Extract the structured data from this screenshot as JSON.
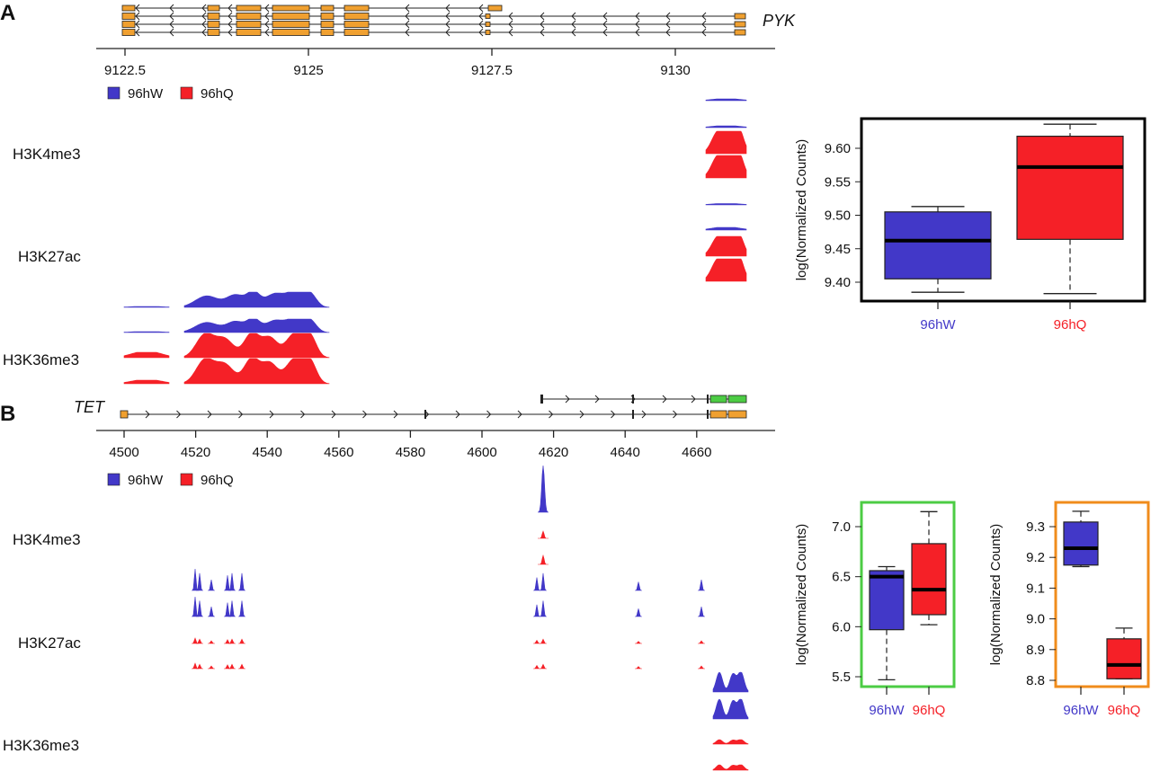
{
  "panels": {
    "a": "A",
    "b": "B"
  },
  "colors": {
    "wt": "#4238c8",
    "q": "#f52027",
    "exon": "#f0a030",
    "green_frame": "#4ccc44",
    "orange_frame": "#f08c1c"
  },
  "legend": {
    "wt": "96hW",
    "q": "96hQ"
  },
  "tracks": {
    "k4": "H3K4me3",
    "k27": "H3K27ac",
    "k36": "H3K36me3"
  },
  "panel_a": {
    "gene": "PYK",
    "axis_ticks": [
      "9122.5",
      "9125",
      "9127.5",
      "9130"
    ]
  },
  "panel_b": {
    "gene": "TET",
    "axis_ticks": [
      "4500",
      "4520",
      "4540",
      "4560",
      "4580",
      "4600",
      "4620",
      "4640",
      "4660"
    ]
  },
  "chart_data": [
    {
      "type": "box",
      "title": "",
      "ylabel": "log(Normalized Counts)",
      "ylim": [
        9.375,
        9.645
      ],
      "yticks": [
        "9.40",
        "9.45",
        "9.50",
        "9.55",
        "9.60"
      ],
      "frame_color": "#000000",
      "categories": [
        "96hW",
        "96hQ"
      ],
      "series": [
        {
          "name": "96hW",
          "min": 9.385,
          "q1": 9.405,
          "median": 9.462,
          "q3": 9.505,
          "max": 9.513
        },
        {
          "name": "96hQ",
          "min": 9.383,
          "q1": 9.464,
          "median": 9.572,
          "q3": 9.618,
          "max": 9.636
        }
      ]
    },
    {
      "type": "box",
      "title": "",
      "ylabel": "log(Normalized Counts)",
      "ylim": [
        5.4,
        7.22
      ],
      "yticks": [
        "5.5",
        "6.0",
        "6.5",
        "7.0"
      ],
      "frame_color": "#4ccc44",
      "categories": [
        "96hW",
        "96hQ"
      ],
      "series": [
        {
          "name": "96hW",
          "min": 5.47,
          "q1": 5.97,
          "median": 6.5,
          "q3": 6.56,
          "max": 6.6
        },
        {
          "name": "96hQ",
          "min": 6.02,
          "q1": 6.12,
          "median": 6.37,
          "q3": 6.83,
          "max": 7.15
        }
      ]
    },
    {
      "type": "box",
      "title": "",
      "ylabel": "log(Normalized Counts)",
      "ylim": [
        8.785,
        9.37
      ],
      "yticks": [
        "8.8",
        "8.9",
        "9.0",
        "9.1",
        "9.2",
        "9.3"
      ],
      "frame_color": "#f08c1c",
      "categories": [
        "96hW",
        "96hQ"
      ],
      "series": [
        {
          "name": "96hW",
          "min": 9.17,
          "q1": 9.175,
          "median": 9.23,
          "q3": 9.315,
          "max": 9.35
        },
        {
          "name": "96hQ",
          "min": 8.805,
          "q1": 8.805,
          "median": 8.85,
          "q3": 8.935,
          "max": 8.97
        }
      ]
    }
  ]
}
